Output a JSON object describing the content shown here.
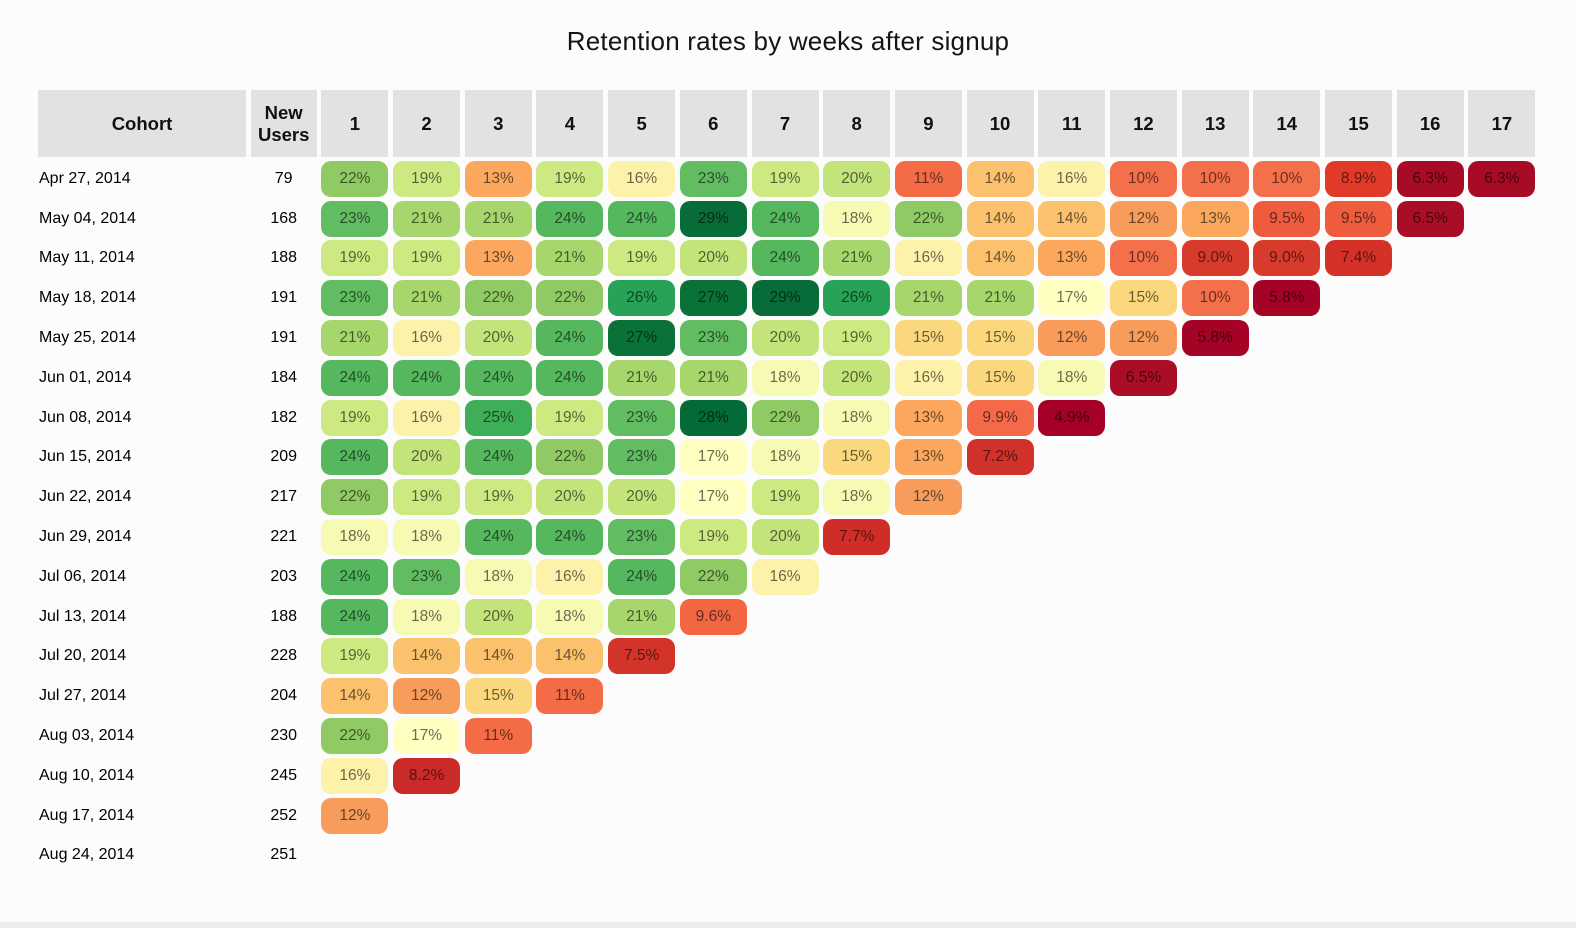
{
  "title": "Retention rates by weeks after signup",
  "header": {
    "cohort_label": "Cohort",
    "new_users_label": "New Users",
    "week_labels": [
      "1",
      "2",
      "3",
      "4",
      "5",
      "6",
      "7",
      "8",
      "9",
      "10",
      "11",
      "12",
      "13",
      "14",
      "15",
      "16",
      "17"
    ]
  },
  "colors": {
    "page_bg": "#fcfcfc",
    "header_bg": "#e2e2e2",
    "bottom_bar": "#ececec",
    "cell_text": "rgba(0,0,0,0.58)"
  },
  "chart_data": {
    "type": "heatmap",
    "title": "Retention rates by weeks after signup",
    "x_axis_label": "weeks after signup",
    "columns": [
      1,
      2,
      3,
      4,
      5,
      6,
      7,
      8,
      9,
      10,
      11,
      12,
      13,
      14,
      15,
      16,
      17
    ],
    "value_unit": "percent",
    "value_format": "one decimal below 10, integer otherwise",
    "rows": [
      {
        "cohort": "Apr 27, 2014",
        "new_users": 79,
        "retention": [
          22,
          19,
          13,
          19,
          16,
          23,
          19,
          20,
          11,
          14,
          16,
          10,
          10,
          10,
          8.9,
          6.3,
          6.3
        ]
      },
      {
        "cohort": "May 04, 2014",
        "new_users": 168,
        "retention": [
          23,
          21,
          21,
          24,
          24,
          29,
          24,
          18,
          22,
          14,
          14,
          12,
          13,
          9.5,
          9.5,
          6.5
        ]
      },
      {
        "cohort": "May 11, 2014",
        "new_users": 188,
        "retention": [
          19,
          19,
          13,
          21,
          19,
          20,
          24,
          21,
          16,
          14,
          13,
          10,
          9.0,
          9.0,
          7.4
        ]
      },
      {
        "cohort": "May 18, 2014",
        "new_users": 191,
        "retention": [
          23,
          21,
          22,
          22,
          26,
          27,
          29,
          26,
          21,
          21,
          17,
          15,
          10,
          5.8
        ]
      },
      {
        "cohort": "May 25, 2014",
        "new_users": 191,
        "retention": [
          21,
          16,
          20,
          24,
          27,
          23,
          20,
          19,
          15,
          15,
          12,
          12,
          5.8
        ]
      },
      {
        "cohort": "Jun 01, 2014",
        "new_users": 184,
        "retention": [
          24,
          24,
          24,
          24,
          21,
          21,
          18,
          20,
          16,
          15,
          18,
          6.5
        ]
      },
      {
        "cohort": "Jun 08, 2014",
        "new_users": 182,
        "retention": [
          19,
          16,
          25,
          19,
          23,
          28,
          22,
          18,
          13,
          9.9,
          4.9
        ]
      },
      {
        "cohort": "Jun 15, 2014",
        "new_users": 209,
        "retention": [
          24,
          20,
          24,
          22,
          23,
          17,
          18,
          15,
          13,
          7.2
        ]
      },
      {
        "cohort": "Jun 22, 2014",
        "new_users": 217,
        "retention": [
          22,
          19,
          19,
          20,
          20,
          17,
          19,
          18,
          12
        ]
      },
      {
        "cohort": "Jun 29, 2014",
        "new_users": 221,
        "retention": [
          18,
          18,
          24,
          24,
          23,
          19,
          20,
          7.7
        ]
      },
      {
        "cohort": "Jul 06, 2014",
        "new_users": 203,
        "retention": [
          24,
          23,
          18,
          16,
          24,
          22,
          16
        ]
      },
      {
        "cohort": "Jul 13, 2014",
        "new_users": 188,
        "retention": [
          24,
          18,
          20,
          18,
          21,
          9.6
        ]
      },
      {
        "cohort": "Jul 20, 2014",
        "new_users": 228,
        "retention": [
          19,
          14,
          14,
          14,
          7.5
        ]
      },
      {
        "cohort": "Jul 27, 2014",
        "new_users": 204,
        "retention": [
          14,
          12,
          15,
          11
        ]
      },
      {
        "cohort": "Aug 03, 2014",
        "new_users": 230,
        "retention": [
          22,
          17,
          11
        ]
      },
      {
        "cohort": "Aug 10, 2014",
        "new_users": 245,
        "retention": [
          16,
          8.2
        ]
      },
      {
        "cohort": "Aug 17, 2014",
        "new_users": 252,
        "retention": [
          12
        ]
      },
      {
        "cohort": "Aug 24, 2014",
        "new_users": 251,
        "retention": []
      }
    ],
    "color_scale": {
      "4.9": "#a50026",
      "5.8": "#a50326",
      "6.3": "#a80b26",
      "6.5": "#aa0e27",
      "7.2": "#d0312a",
      "7.4": "#d43128",
      "7.5": "#d3342a",
      "7.7": "#cf2e28",
      "8.2": "#cb2b28",
      "8.9": "#e23a29",
      "9": "#d73b2b",
      "9.5": "#ef5c3d",
      "9.6": "#f26741",
      "9.9": "#f4694a",
      "10": "#f4704a",
      "11": "#f36c45",
      "12": "#f89c5b",
      "13": "#fba85e",
      "14": "#fcc16d",
      "15": "#fbd87d",
      "16": "#fdf2a9",
      "17": "#feffc0",
      "18": "#f7fab3",
      "19": "#cdea82",
      "20": "#c2e47b",
      "21": "#a6d66c",
      "22": "#90ca64",
      "23": "#61bc62",
      "24": "#55b75e",
      "25": "#3fae59",
      "26": "#27a257",
      "27": "#0a7239",
      "28": "#046a38",
      "29": "#086c38"
    }
  }
}
